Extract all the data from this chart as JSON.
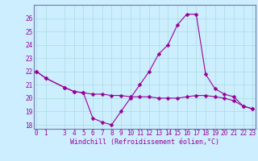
{
  "xlabel": "Windchill (Refroidissement éolien,°C)",
  "x_values": [
    0,
    1,
    3,
    4,
    5,
    6,
    7,
    8,
    9,
    10,
    11,
    12,
    13,
    14,
    15,
    16,
    17,
    18,
    19,
    20,
    21,
    22,
    23
  ],
  "temp_line": [
    22.0,
    21.5,
    20.8,
    20.5,
    20.4,
    20.3,
    20.3,
    20.2,
    20.2,
    20.1,
    20.1,
    20.1,
    20.0,
    20.0,
    20.0,
    20.1,
    20.2,
    20.2,
    20.1,
    20.0,
    19.8,
    19.4,
    19.2
  ],
  "windchill_line": [
    22.0,
    21.5,
    20.8,
    20.5,
    20.4,
    18.5,
    18.2,
    18.0,
    19.0,
    20.0,
    21.0,
    22.0,
    23.3,
    24.0,
    25.5,
    26.3,
    26.3,
    21.8,
    20.7,
    20.3,
    20.1,
    19.4,
    19.2
  ],
  "line_color": "#990099",
  "marker": "D",
  "marker_size": 2.5,
  "bg_color": "#cceeff",
  "grid_color": "#aadddd",
  "ylim": [
    17.7,
    27.0
  ],
  "yticks": [
    18,
    19,
    20,
    21,
    22,
    23,
    24,
    25,
    26
  ],
  "xticks": [
    0,
    1,
    3,
    4,
    5,
    6,
    7,
    8,
    9,
    10,
    11,
    12,
    13,
    14,
    15,
    16,
    17,
    18,
    19,
    20,
    21,
    22,
    23
  ],
  "xlim": [
    -0.3,
    23.3
  ],
  "tick_fontsize": 5.5,
  "xlabel_fontsize": 6.0,
  "spine_color": "#7777aa"
}
